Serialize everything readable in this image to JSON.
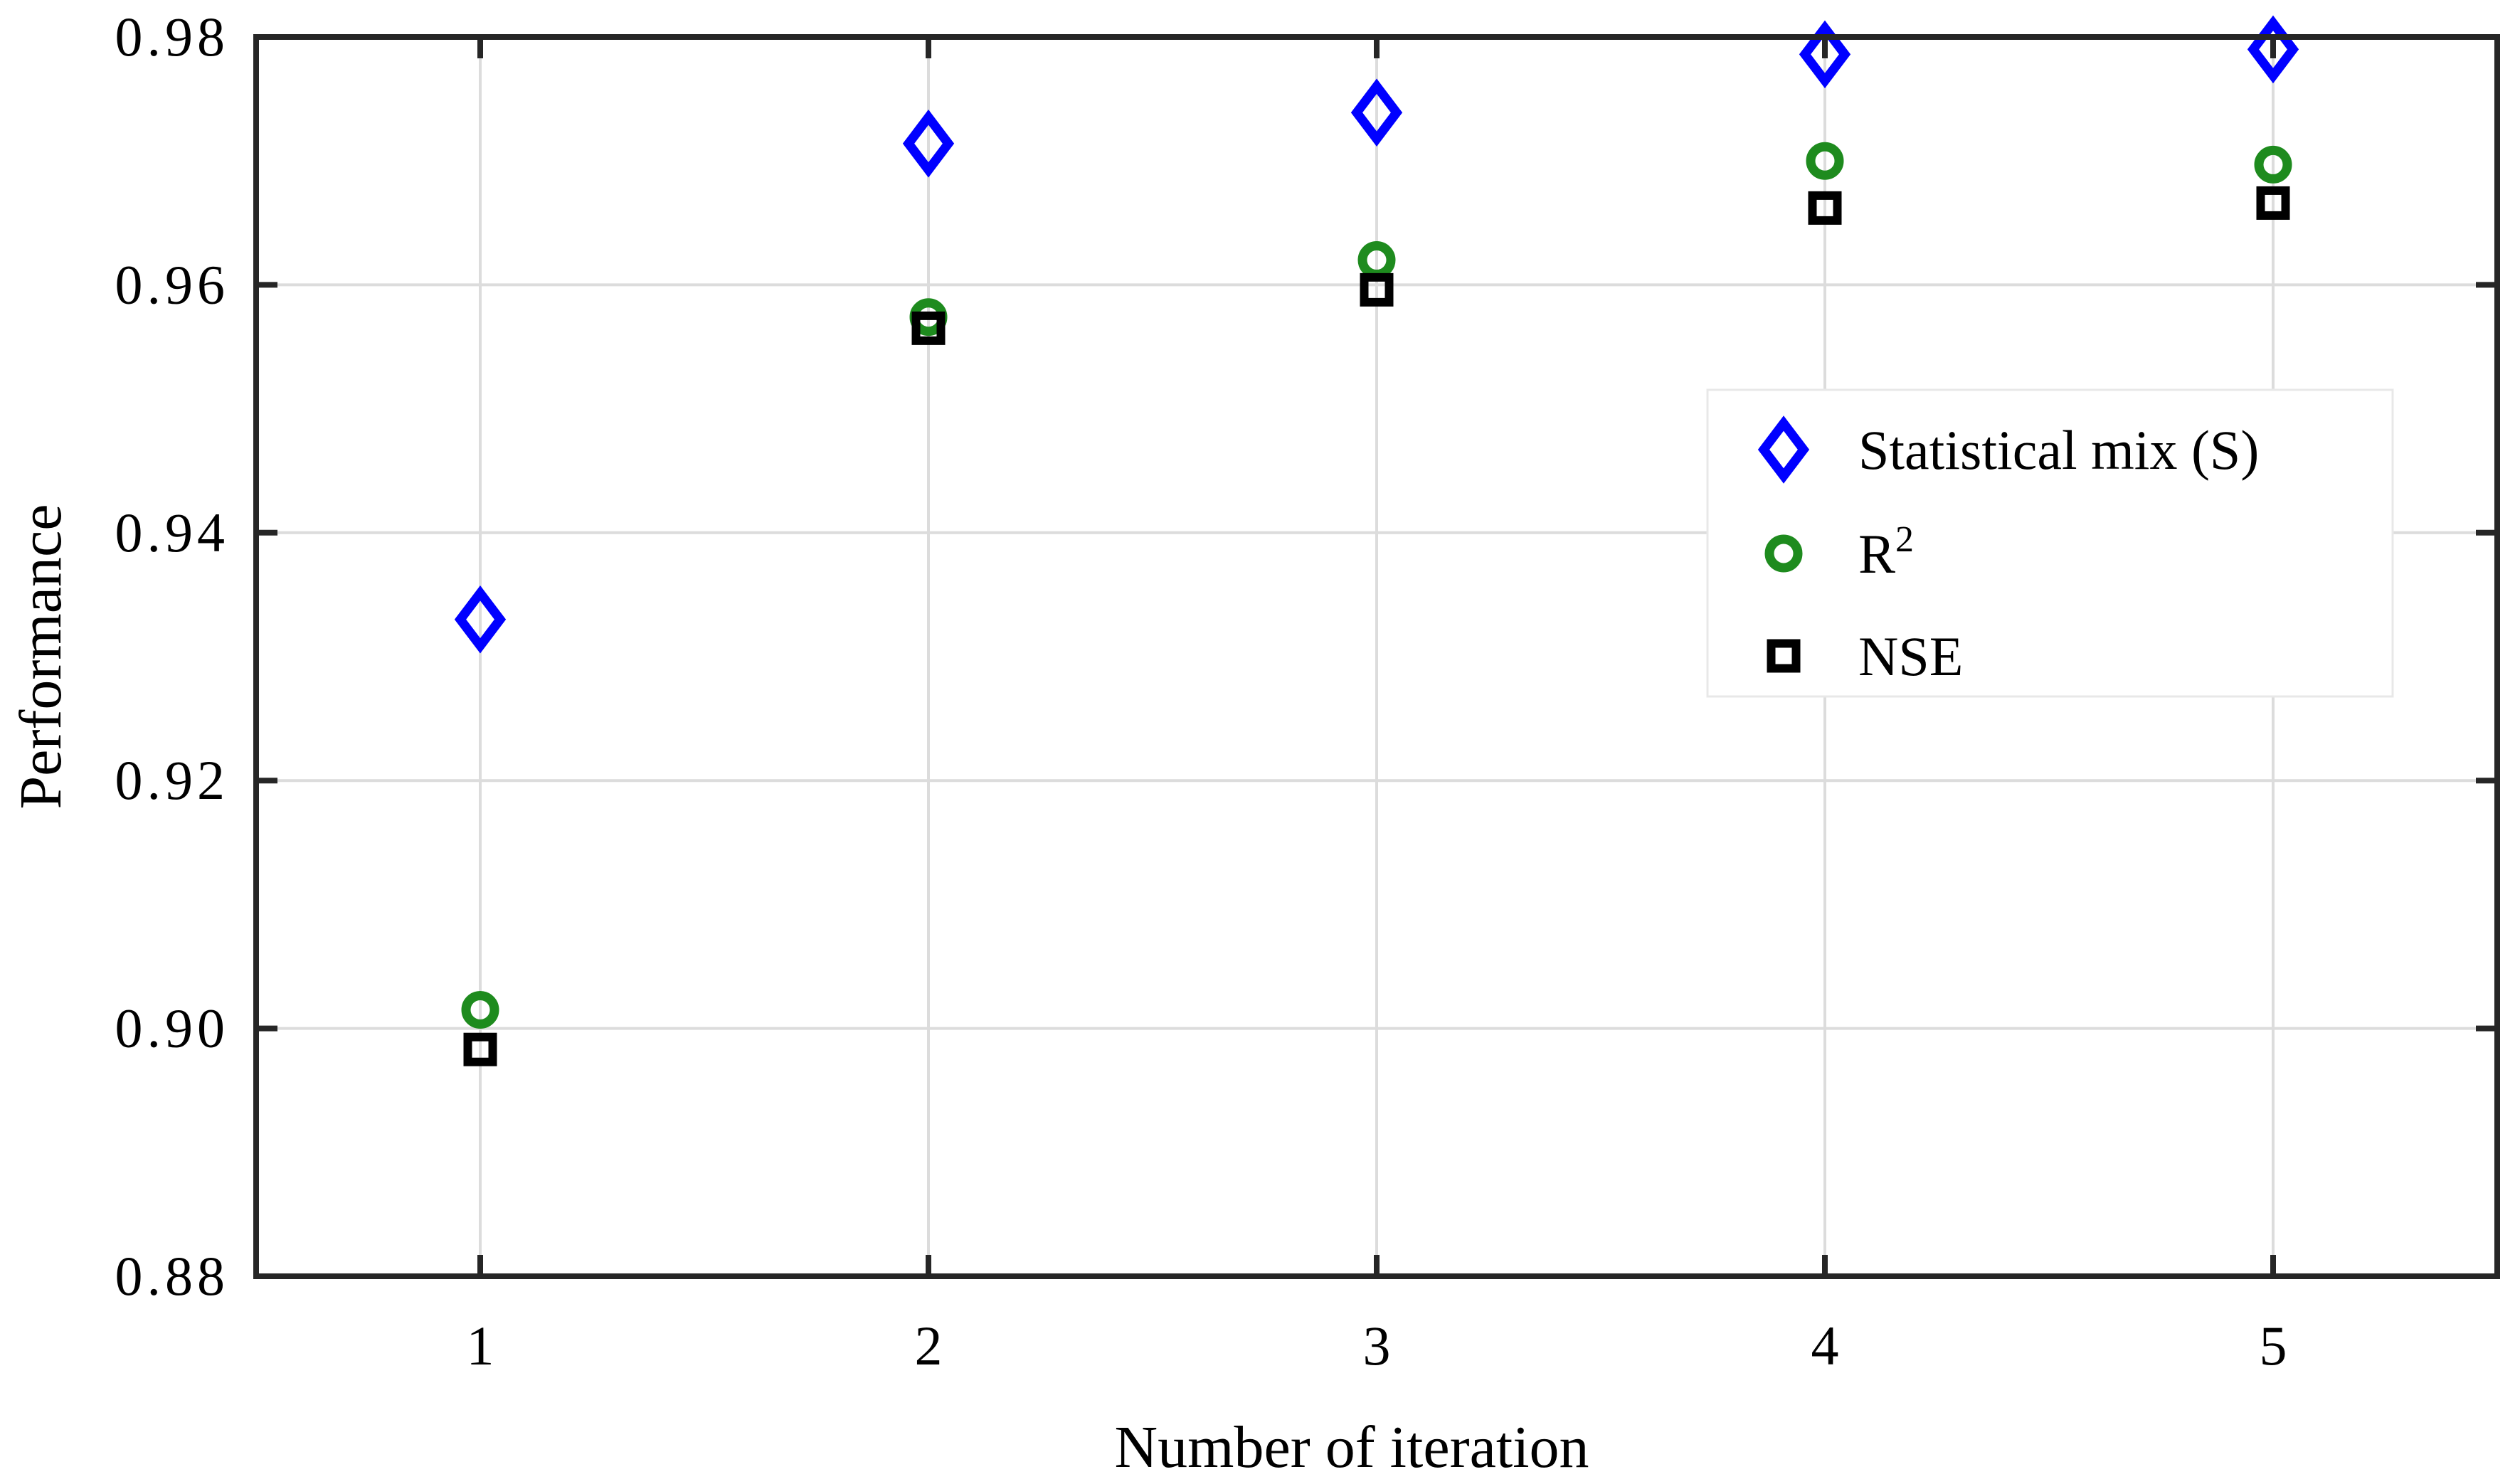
{
  "figure": {
    "background": "#ffffff",
    "axis_color": "#262626",
    "grid_color": "#dcdcdc",
    "legend_border_color": "#e8e8e8",
    "legend_background": "#ffffff"
  },
  "chart_data": {
    "type": "scatter",
    "title": "",
    "xlabel": "Number of iteration",
    "ylabel": "Performance",
    "xlim": [
      0.5,
      5.5
    ],
    "ylim": [
      0.88,
      0.98
    ],
    "grid": true,
    "legend_position": "center-right",
    "x_ticks": [
      1,
      2,
      3,
      4,
      5
    ],
    "x_tick_labels": [
      "1",
      "2",
      "3",
      "4",
      "5"
    ],
    "y_ticks": [
      0.88,
      0.9,
      0.92,
      0.94,
      0.96,
      0.98
    ],
    "y_tick_labels": [
      "0.88",
      "0.90",
      "0.92",
      "0.94",
      "0.96",
      "0.98"
    ],
    "x": [
      1,
      2,
      3,
      4,
      5
    ],
    "series": [
      {
        "name": "Statistical mix (S)",
        "marker": "diamond",
        "color": "#0000ff",
        "values": [
          0.933,
          0.9714,
          0.9739,
          0.9786,
          0.979
        ]
      },
      {
        "name": "R²",
        "marker": "circle",
        "color": "#1e8b1e",
        "values": [
          0.9015,
          0.9574,
          0.962,
          0.97,
          0.9697
        ]
      },
      {
        "name": "NSE",
        "marker": "square",
        "color": "#000000",
        "values": [
          0.8983,
          0.9565,
          0.9596,
          0.9662,
          0.9666
        ]
      }
    ]
  }
}
